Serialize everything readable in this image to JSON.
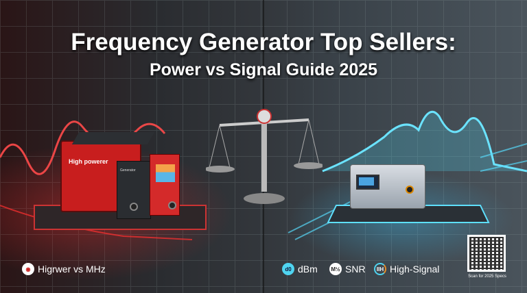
{
  "header": {
    "title": "Frequency Generator Top Sellers:",
    "subtitle": "Power vs Signal Guide 2025"
  },
  "left_device": {
    "brand": "High powerer",
    "panel_label": "Generator"
  },
  "labels": [
    {
      "icon": "ring-icon",
      "text": "Higrwer vs MHz"
    },
    {
      "icon": "d0-badge",
      "badge": "d0",
      "text": "dBm"
    },
    {
      "icon": "mhz-badge",
      "badge": "M½",
      "text": "SNR"
    },
    {
      "icon": "signal-bars-icon",
      "badge": "IIH",
      "text": "High-Signal"
    }
  ],
  "qr": {
    "caption": "Scan for 2025 Specs"
  },
  "colors": {
    "power": "#e02626",
    "signal": "#4fd4f0"
  }
}
